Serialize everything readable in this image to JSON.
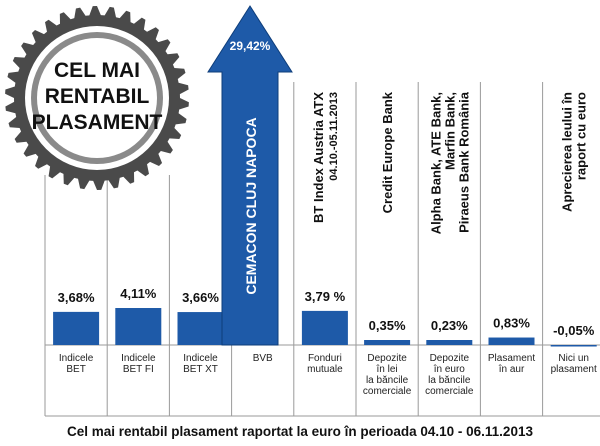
{
  "badge": {
    "lines": [
      "CEL MAI",
      "RENTABIL",
      "PLASAMENT"
    ]
  },
  "caption": "Cel mai rentabil plasament raportat la euro în perioada 04.10 - 06.11.2013",
  "colors": {
    "bar": "#1e5aa8",
    "arrow": "#1e5aa8",
    "grid": "#9a9a9a"
  },
  "chart_data": {
    "type": "bar",
    "title": "",
    "categories": [
      "Indicele BET",
      "Indicele BET FI",
      "Indicele BET XT",
      "BVB",
      "Fonduri mutuale",
      "Depozite în lei la băncile comerciale",
      "Depozite în euro la băncile comerciale",
      "Plasament în aur",
      "Nici un plasament"
    ],
    "category_lines": [
      [
        "Indicele",
        "BET"
      ],
      [
        "Indicele",
        "BET FI"
      ],
      [
        "Indicele",
        "BET XT"
      ],
      [
        "BVB"
      ],
      [
        "Fonduri",
        "mutuale"
      ],
      [
        "Depozite",
        "în lei",
        "la băncile",
        "comerciale"
      ],
      [
        "Depozite",
        "în euro",
        "la băncile",
        "comerciale"
      ],
      [
        "Plasament",
        "în aur"
      ],
      [
        "Nici un",
        "plasament"
      ]
    ],
    "values": [
      3.68,
      4.11,
      3.66,
      29.42,
      3.79,
      0.35,
      0.23,
      0.83,
      -0.05
    ],
    "value_labels": [
      "3,68%",
      "4,11%",
      "3,66%",
      "29,42%",
      "3,79 %",
      "0,35%",
      "0,23%",
      "0,83%",
      "-0,05%"
    ],
    "top_labels": [
      [],
      [],
      [],
      [
        "CEMACON CLUJ NAPOCA"
      ],
      [
        "BT Index Austria ATX",
        "04.10.-05.11.2013"
      ],
      [
        "Credit Europe Bank"
      ],
      [
        "Alpha Bank, ATE Bank,",
        "Marfin Bank,",
        "Piraeus Bank România"
      ],
      [],
      [
        "Aprecierea leului în",
        "raport cu euro"
      ]
    ],
    "ylabel": "",
    "xlabel": ""
  }
}
